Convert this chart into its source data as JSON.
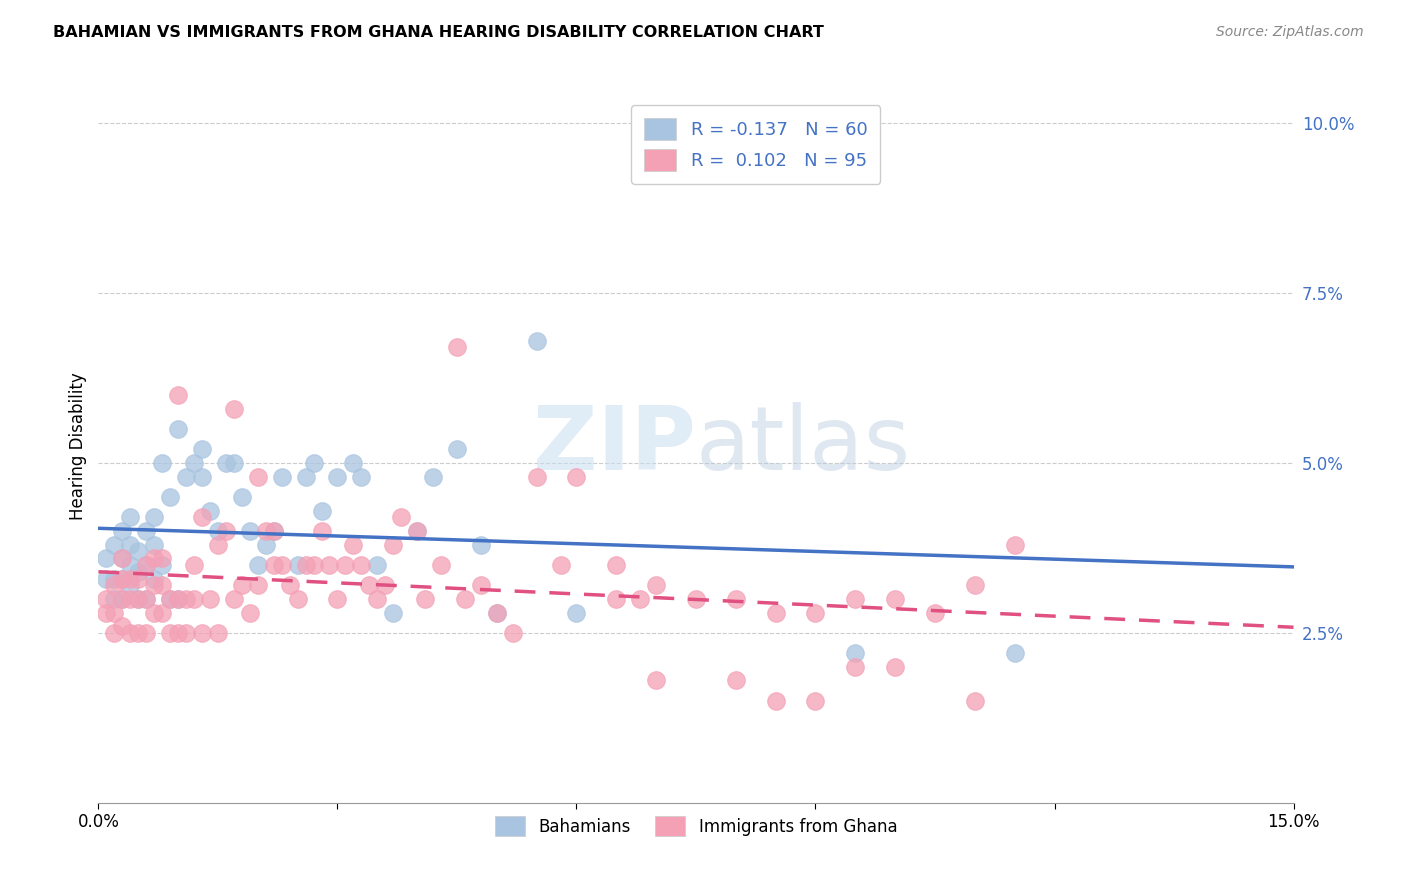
{
  "title": "BAHAMIAN VS IMMIGRANTS FROM GHANA HEARING DISABILITY CORRELATION CHART",
  "source": "Source: ZipAtlas.com",
  "ylabel": "Hearing Disability",
  "xmin": 0.0,
  "xmax": 0.15,
  "ymin": 0.0,
  "ymax": 0.105,
  "color_blue": "#a8c4e0",
  "color_pink": "#f4a0b5",
  "line_blue": "#4472c4",
  "line_pink": "#e05080",
  "bahamian_R": -0.137,
  "bahamian_N": 60,
  "ghana_R": 0.102,
  "ghana_N": 95,
  "watermark_zip": "ZIP",
  "watermark_atlas": "atlas",
  "legend_bahamians": "Bahamians",
  "legend_ghana": "Immigrants from Ghana",
  "bahamian_x": [
    0.001,
    0.001,
    0.002,
    0.002,
    0.002,
    0.003,
    0.003,
    0.003,
    0.003,
    0.004,
    0.004,
    0.004,
    0.004,
    0.005,
    0.005,
    0.005,
    0.006,
    0.006,
    0.006,
    0.007,
    0.007,
    0.007,
    0.008,
    0.008,
    0.009,
    0.009,
    0.01,
    0.01,
    0.011,
    0.012,
    0.013,
    0.013,
    0.014,
    0.015,
    0.016,
    0.017,
    0.018,
    0.019,
    0.02,
    0.021,
    0.022,
    0.023,
    0.025,
    0.026,
    0.027,
    0.028,
    0.03,
    0.032,
    0.033,
    0.035,
    0.037,
    0.04,
    0.042,
    0.045,
    0.048,
    0.05,
    0.055,
    0.06,
    0.095,
    0.115
  ],
  "bahamian_y": [
    0.033,
    0.036,
    0.03,
    0.033,
    0.038,
    0.03,
    0.033,
    0.036,
    0.04,
    0.032,
    0.035,
    0.038,
    0.042,
    0.03,
    0.034,
    0.037,
    0.03,
    0.035,
    0.04,
    0.033,
    0.038,
    0.042,
    0.035,
    0.05,
    0.03,
    0.045,
    0.03,
    0.055,
    0.048,
    0.05,
    0.048,
    0.052,
    0.043,
    0.04,
    0.05,
    0.05,
    0.045,
    0.04,
    0.035,
    0.038,
    0.04,
    0.048,
    0.035,
    0.048,
    0.05,
    0.043,
    0.048,
    0.05,
    0.048,
    0.035,
    0.028,
    0.04,
    0.048,
    0.052,
    0.038,
    0.028,
    0.068,
    0.028,
    0.022,
    0.022
  ],
  "ghana_x": [
    0.001,
    0.001,
    0.002,
    0.002,
    0.002,
    0.003,
    0.003,
    0.003,
    0.003,
    0.004,
    0.004,
    0.004,
    0.005,
    0.005,
    0.005,
    0.006,
    0.006,
    0.006,
    0.007,
    0.007,
    0.007,
    0.008,
    0.008,
    0.008,
    0.009,
    0.009,
    0.01,
    0.01,
    0.01,
    0.011,
    0.011,
    0.012,
    0.012,
    0.013,
    0.013,
    0.014,
    0.015,
    0.015,
    0.016,
    0.017,
    0.017,
    0.018,
    0.019,
    0.02,
    0.02,
    0.021,
    0.022,
    0.022,
    0.023,
    0.024,
    0.025,
    0.026,
    0.027,
    0.028,
    0.029,
    0.03,
    0.031,
    0.032,
    0.033,
    0.034,
    0.035,
    0.036,
    0.037,
    0.038,
    0.04,
    0.041,
    0.043,
    0.045,
    0.046,
    0.048,
    0.05,
    0.052,
    0.055,
    0.058,
    0.06,
    0.065,
    0.068,
    0.07,
    0.075,
    0.08,
    0.085,
    0.09,
    0.095,
    0.1,
    0.105,
    0.11,
    0.115,
    0.065,
    0.07,
    0.08,
    0.085,
    0.09,
    0.095,
    0.1,
    0.11
  ],
  "ghana_y": [
    0.028,
    0.03,
    0.025,
    0.028,
    0.032,
    0.026,
    0.03,
    0.033,
    0.036,
    0.025,
    0.03,
    0.033,
    0.025,
    0.03,
    0.033,
    0.025,
    0.03,
    0.035,
    0.028,
    0.032,
    0.036,
    0.028,
    0.032,
    0.036,
    0.025,
    0.03,
    0.025,
    0.03,
    0.06,
    0.025,
    0.03,
    0.03,
    0.035,
    0.025,
    0.042,
    0.03,
    0.038,
    0.025,
    0.04,
    0.03,
    0.058,
    0.032,
    0.028,
    0.032,
    0.048,
    0.04,
    0.035,
    0.04,
    0.035,
    0.032,
    0.03,
    0.035,
    0.035,
    0.04,
    0.035,
    0.03,
    0.035,
    0.038,
    0.035,
    0.032,
    0.03,
    0.032,
    0.038,
    0.042,
    0.04,
    0.03,
    0.035,
    0.067,
    0.03,
    0.032,
    0.028,
    0.025,
    0.048,
    0.035,
    0.048,
    0.03,
    0.03,
    0.032,
    0.03,
    0.03,
    0.028,
    0.028,
    0.03,
    0.03,
    0.028,
    0.032,
    0.038,
    0.035,
    0.018,
    0.018,
    0.015,
    0.015,
    0.02,
    0.02,
    0.015
  ]
}
